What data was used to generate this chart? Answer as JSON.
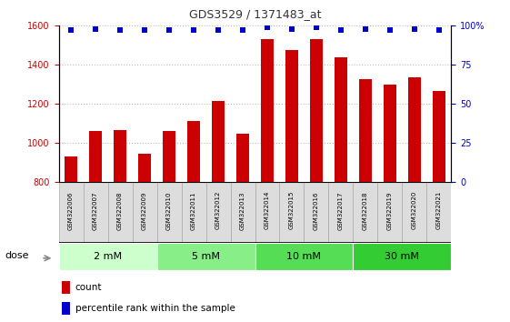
{
  "title": "GDS3529 / 1371483_at",
  "samples": [
    "GSM322006",
    "GSM322007",
    "GSM322008",
    "GSM322009",
    "GSM322010",
    "GSM322011",
    "GSM322012",
    "GSM322013",
    "GSM322014",
    "GSM322015",
    "GSM322016",
    "GSM322017",
    "GSM322018",
    "GSM322019",
    "GSM322020",
    "GSM322021"
  ],
  "counts": [
    930,
    1060,
    1065,
    945,
    1060,
    1110,
    1215,
    1048,
    1530,
    1475,
    1530,
    1440,
    1325,
    1300,
    1335,
    1265
  ],
  "percentiles": [
    97,
    98,
    97,
    97,
    97,
    97,
    97,
    97,
    99,
    98,
    99,
    97,
    98,
    97,
    98,
    97
  ],
  "bar_color": "#cc0000",
  "dot_color": "#0000cc",
  "ylim_left": [
    800,
    1600
  ],
  "ylim_right": [
    0,
    100
  ],
  "yticks_left": [
    800,
    1000,
    1200,
    1400,
    1600
  ],
  "yticks_right": [
    0,
    25,
    50,
    75,
    100
  ],
  "yticklabels_right": [
    "0",
    "25",
    "50",
    "75",
    "100%"
  ],
  "groups": [
    {
      "label": "2 mM",
      "start": 0,
      "end": 4,
      "color": "#ccffcc"
    },
    {
      "label": "5 mM",
      "start": 4,
      "end": 8,
      "color": "#88ee88"
    },
    {
      "label": "10 mM",
      "start": 8,
      "end": 12,
      "color": "#55dd55"
    },
    {
      "label": "30 mM",
      "start": 12,
      "end": 16,
      "color": "#33cc33"
    }
  ],
  "dose_label": "dose",
  "legend_count_label": "count",
  "legend_percentile_label": "percentile rank within the sample",
  "bar_color_legend": "#cc0000",
  "dot_color_legend": "#0000cc",
  "tick_label_color_left": "#cc0000",
  "tick_label_color_right": "#0000cc",
  "bar_bottom": 800,
  "grid_color": "#000000",
  "grid_alpha": 0.25,
  "sample_box_color": "#dddddd",
  "sample_box_edge": "#aaaaaa"
}
